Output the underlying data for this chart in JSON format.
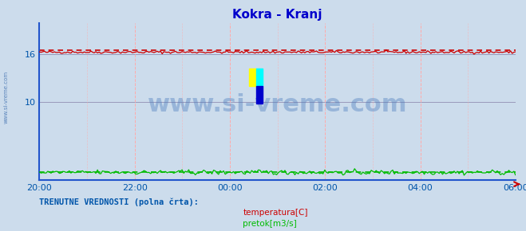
{
  "title": "Kokra - Kranj",
  "title_color": "#0000cc",
  "title_fontsize": 11,
  "bg_color": "#ccdcec",
  "plot_bg_color": "#ccdcec",
  "x_ticks": [
    "20:00",
    "22:00",
    "00:00",
    "02:00",
    "04:00",
    "06:00"
  ],
  "x_tick_positions": [
    0.0,
    0.2,
    0.4,
    0.6,
    0.8,
    1.0
  ],
  "y_ticks": [
    10,
    16
  ],
  "ylim": [
    0,
    20
  ],
  "xlim": [
    0,
    1
  ],
  "temp_color": "#cc0000",
  "flow_color": "#00bb00",
  "grid_color_h": "#9999bb",
  "grid_color_v": "#ffaaaa",
  "tick_color": "#0055aa",
  "watermark_color": "#4477bb",
  "watermark_text": "www.si-vreme.com",
  "watermark_fontsize": 22,
  "side_text": "www.si-vreme.com",
  "side_text_color": "#3366aa",
  "legend_label1": "temperatura[C]",
  "legend_label2": "pretok[m3/s]",
  "legend_color1": "#cc0000",
  "legend_color2": "#00bb00",
  "bottom_text": "TRENUTNE VREDNOSTI (polna črta):",
  "bottom_text_color": "#0055aa",
  "n_points": 288,
  "temp_mean": 16.3,
  "temp_avg_value": 16.55,
  "flow_mean": 1.0,
  "flow_avg_value": 1.05,
  "spine_color": "#2255cc",
  "arrow_color": "#cc0000"
}
